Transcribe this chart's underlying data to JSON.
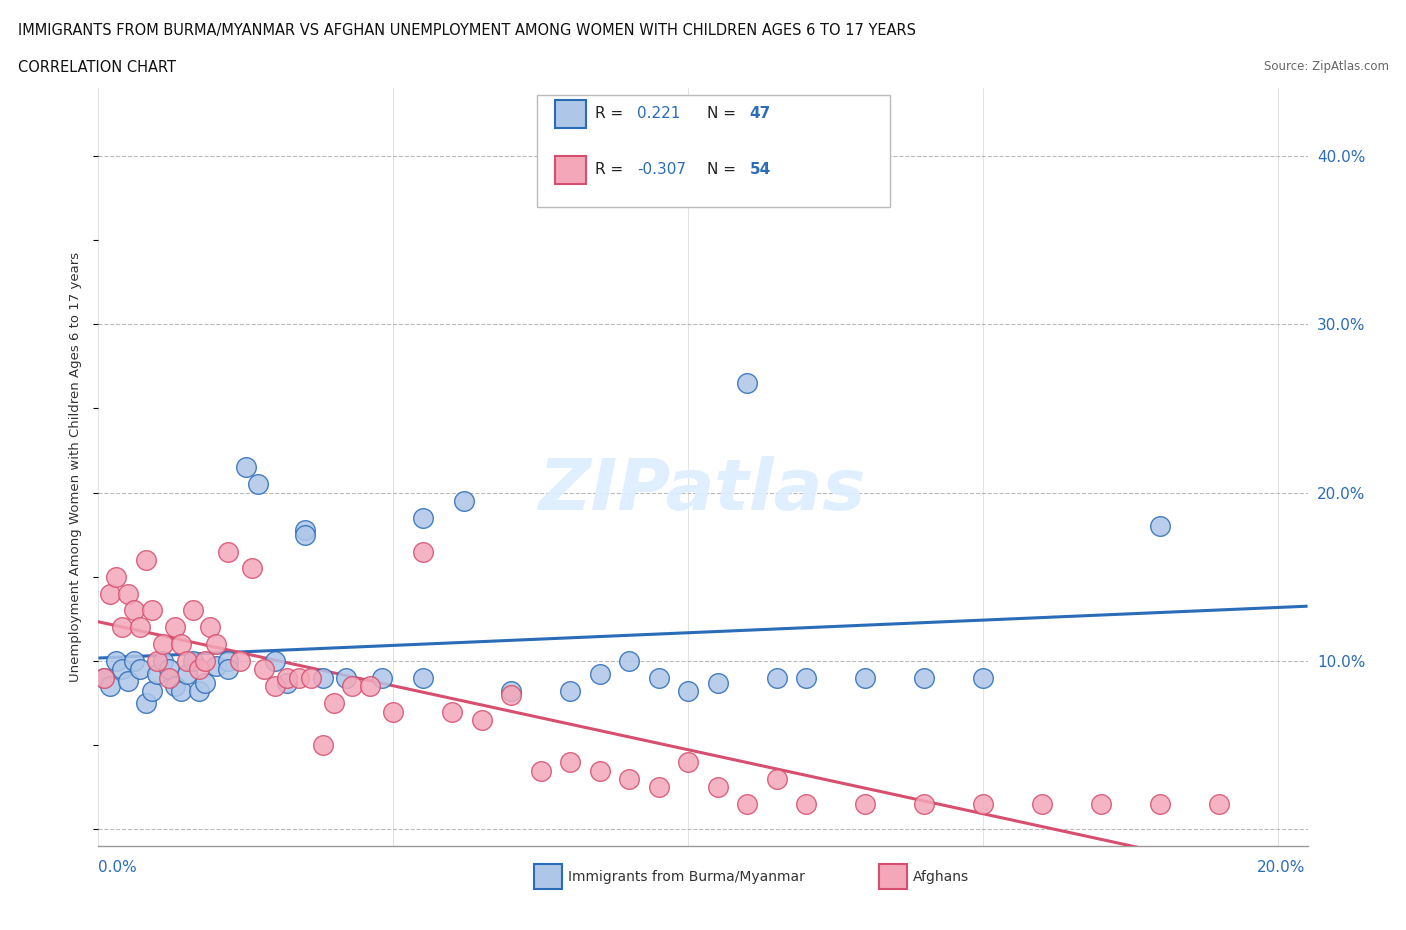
{
  "title_line1": "IMMIGRANTS FROM BURMA/MYANMAR VS AFGHAN UNEMPLOYMENT AMONG WOMEN WITH CHILDREN AGES 6 TO 17 YEARS",
  "title_line2": "CORRELATION CHART",
  "source": "Source: ZipAtlas.com",
  "ylabel": "Unemployment Among Women with Children Ages 6 to 17 years",
  "xlim": [
    0.0,
    0.205
  ],
  "ylim": [
    -0.01,
    0.44
  ],
  "yticks": [
    0.0,
    0.1,
    0.2,
    0.3,
    0.4
  ],
  "ytick_labels": [
    "",
    "10.0%",
    "20.0%",
    "30.0%",
    "40.0%"
  ],
  "burma_color": "#aec6e8",
  "afghan_color": "#f4a7b9",
  "burma_line_color": "#2b6cb8",
  "afghan_line_color": "#d64f6e",
  "burma_x": [
    0.001,
    0.002,
    0.003,
    0.004,
    0.005,
    0.006,
    0.007,
    0.008,
    0.009,
    0.01,
    0.011,
    0.012,
    0.013,
    0.014,
    0.015,
    0.016,
    0.017,
    0.018,
    0.02,
    0.022,
    0.025,
    0.027,
    0.03,
    0.032,
    0.035,
    0.038,
    0.042,
    0.048,
    0.055,
    0.062,
    0.07,
    0.08,
    0.085,
    0.09,
    0.095,
    0.1,
    0.105,
    0.11,
    0.115,
    0.12,
    0.13,
    0.14,
    0.15,
    0.055,
    0.035,
    0.022,
    0.18
  ],
  "burma_y": [
    0.09,
    0.085,
    0.1,
    0.095,
    0.088,
    0.1,
    0.095,
    0.075,
    0.082,
    0.092,
    0.1,
    0.095,
    0.085,
    0.082,
    0.092,
    0.1,
    0.082,
    0.087,
    0.097,
    0.1,
    0.215,
    0.205,
    0.1,
    0.087,
    0.178,
    0.09,
    0.09,
    0.09,
    0.09,
    0.195,
    0.082,
    0.082,
    0.092,
    0.1,
    0.09,
    0.082,
    0.087,
    0.265,
    0.09,
    0.09,
    0.09,
    0.09,
    0.09,
    0.185,
    0.175,
    0.095,
    0.18
  ],
  "afghan_x": [
    0.001,
    0.002,
    0.003,
    0.004,
    0.005,
    0.006,
    0.007,
    0.008,
    0.009,
    0.01,
    0.011,
    0.012,
    0.013,
    0.014,
    0.015,
    0.016,
    0.017,
    0.018,
    0.019,
    0.02,
    0.022,
    0.024,
    0.026,
    0.028,
    0.03,
    0.032,
    0.034,
    0.036,
    0.038,
    0.04,
    0.043,
    0.046,
    0.05,
    0.055,
    0.06,
    0.065,
    0.07,
    0.075,
    0.08,
    0.085,
    0.09,
    0.095,
    0.1,
    0.105,
    0.11,
    0.115,
    0.12,
    0.13,
    0.14,
    0.15,
    0.16,
    0.17,
    0.18,
    0.19
  ],
  "afghan_y": [
    0.09,
    0.14,
    0.15,
    0.12,
    0.14,
    0.13,
    0.12,
    0.16,
    0.13,
    0.1,
    0.11,
    0.09,
    0.12,
    0.11,
    0.1,
    0.13,
    0.095,
    0.1,
    0.12,
    0.11,
    0.165,
    0.1,
    0.155,
    0.095,
    0.085,
    0.09,
    0.09,
    0.09,
    0.05,
    0.075,
    0.085,
    0.085,
    0.07,
    0.165,
    0.07,
    0.065,
    0.08,
    0.035,
    0.04,
    0.035,
    0.03,
    0.025,
    0.04,
    0.025,
    0.015,
    0.03,
    0.015,
    0.015,
    0.015,
    0.015,
    0.015,
    0.015,
    0.015,
    0.015
  ]
}
